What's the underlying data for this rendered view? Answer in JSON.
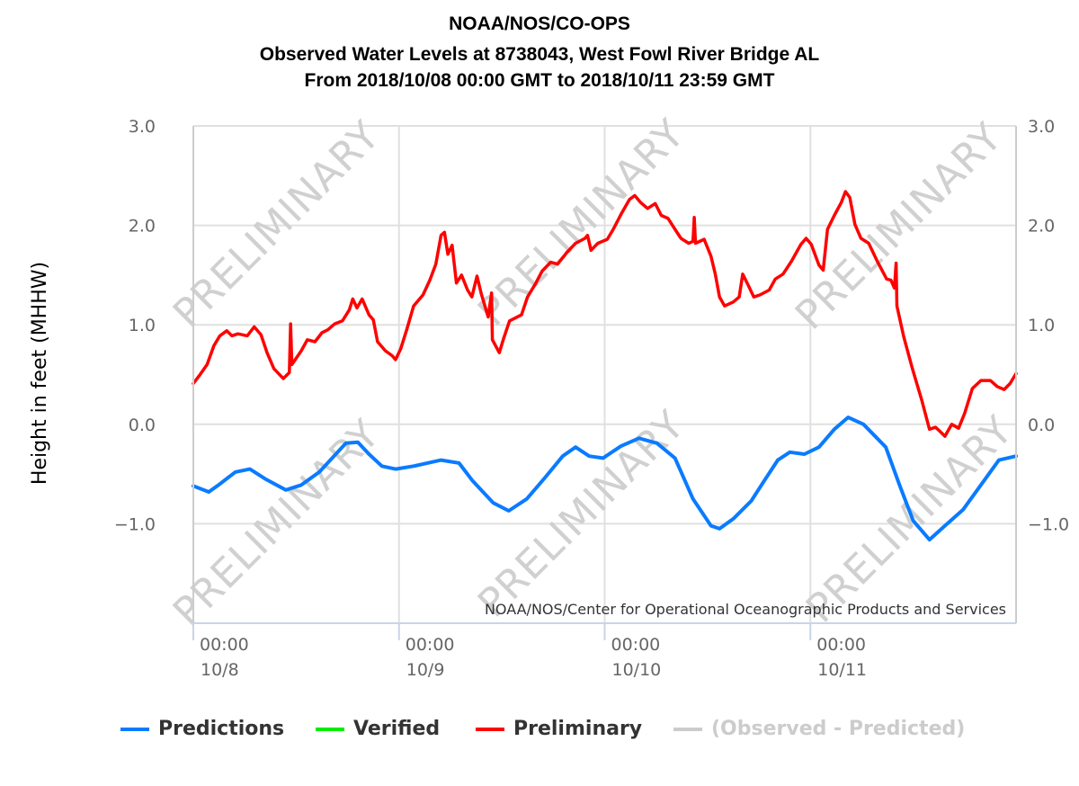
{
  "chart_data": {
    "type": "line",
    "title": [
      "NOAA/NOS/CO-OPS",
      "Observed Water Levels at 8738043, West Fowl River Bridge AL",
      "From 2018/10/08 00:00 GMT to 2018/10/11 23:59 GMT"
    ],
    "ylabel": "Height in feet (MHHW)",
    "xlabel": "",
    "x_units": "hours since 2018/10/08 00:00 GMT",
    "xlim": [
      0,
      96
    ],
    "ylim": [
      -2,
      3
    ],
    "y_ticks": [
      {
        "v": 3,
        "label": "3.0"
      },
      {
        "v": 2,
        "label": "2.0"
      },
      {
        "v": 1,
        "label": "1.0"
      },
      {
        "v": 0,
        "label": "0.0"
      },
      {
        "v": -1,
        "label": "−1.0"
      }
    ],
    "x_ticks": [
      {
        "v": 0,
        "time": "00:00",
        "date": "10/8"
      },
      {
        "v": 24,
        "time": "00:00",
        "date": "10/9"
      },
      {
        "v": 48,
        "time": "00:00",
        "date": "10/10"
      },
      {
        "v": 72,
        "time": "00:00",
        "date": "10/11"
      }
    ],
    "grid": true,
    "watermark": "PRELIMINARY",
    "credit": "NOAA/NOS/Center for Operational Oceanographic Products and Services",
    "legend_position": "bottom",
    "legend": [
      {
        "name": "Predictions",
        "color": "#0a7bff",
        "active": true
      },
      {
        "name": "Verified",
        "color": "#00ee00",
        "active": true
      },
      {
        "name": "Preliminary",
        "color": "#ff0000",
        "active": true
      },
      {
        "name": "(Observed - Predicted)",
        "color": "#cccccc",
        "active": false
      }
    ],
    "series": [
      {
        "name": "Preliminary",
        "color": "#ff0000",
        "points": [
          [
            0,
            0.41
          ],
          [
            0.7,
            0.49
          ],
          [
            1.6,
            0.6
          ],
          [
            2.4,
            0.79
          ],
          [
            3.1,
            0.89
          ],
          [
            3.9,
            0.94
          ],
          [
            4.5,
            0.89
          ],
          [
            5.2,
            0.91
          ],
          [
            6.3,
            0.89
          ],
          [
            7.1,
            0.98
          ],
          [
            7.9,
            0.9
          ],
          [
            8.6,
            0.72
          ],
          [
            9.4,
            0.56
          ],
          [
            10.5,
            0.46
          ],
          [
            11.2,
            0.52
          ],
          [
            11.35,
            1.01
          ],
          [
            11.5,
            0.6
          ],
          [
            12.6,
            0.74
          ],
          [
            13.3,
            0.85
          ],
          [
            14.2,
            0.83
          ],
          [
            15.0,
            0.92
          ],
          [
            15.7,
            0.95
          ],
          [
            16.5,
            1.01
          ],
          [
            17.4,
            1.04
          ],
          [
            18.2,
            1.15
          ],
          [
            18.6,
            1.26
          ],
          [
            19.1,
            1.17
          ],
          [
            19.7,
            1.26
          ],
          [
            20.5,
            1.1
          ],
          [
            21.0,
            1.05
          ],
          [
            21.5,
            0.83
          ],
          [
            22.4,
            0.74
          ],
          [
            23.2,
            0.69
          ],
          [
            23.6,
            0.65
          ],
          [
            24.2,
            0.76
          ],
          [
            24.9,
            0.95
          ],
          [
            25.7,
            1.19
          ],
          [
            26.8,
            1.3
          ],
          [
            27.6,
            1.45
          ],
          [
            28.3,
            1.61
          ],
          [
            28.9,
            1.9
          ],
          [
            29.3,
            1.93
          ],
          [
            29.7,
            1.71
          ],
          [
            30.2,
            1.8
          ],
          [
            30.7,
            1.42
          ],
          [
            31.3,
            1.5
          ],
          [
            32.0,
            1.35
          ],
          [
            32.5,
            1.28
          ],
          [
            33.1,
            1.49
          ],
          [
            33.6,
            1.31
          ],
          [
            34.4,
            1.08
          ],
          [
            34.8,
            1.32
          ],
          [
            34.9,
            0.85
          ],
          [
            35.7,
            0.72
          ],
          [
            36.2,
            0.86
          ],
          [
            36.9,
            1.04
          ],
          [
            37.8,
            1.08
          ],
          [
            38.3,
            1.1
          ],
          [
            39.0,
            1.28
          ],
          [
            39.9,
            1.41
          ],
          [
            40.7,
            1.54
          ],
          [
            41.7,
            1.63
          ],
          [
            42.5,
            1.61
          ],
          [
            43.6,
            1.73
          ],
          [
            44.6,
            1.82
          ],
          [
            45.7,
            1.87
          ],
          [
            46.0,
            1.9
          ],
          [
            46.4,
            1.75
          ],
          [
            47.2,
            1.82
          ],
          [
            48.3,
            1.86
          ],
          [
            49.0,
            1.96
          ],
          [
            49.9,
            2.11
          ],
          [
            50.9,
            2.26
          ],
          [
            51.5,
            2.3
          ],
          [
            52.2,
            2.23
          ],
          [
            53.0,
            2.17
          ],
          [
            53.9,
            2.22
          ],
          [
            54.6,
            2.1
          ],
          [
            55.4,
            2.07
          ],
          [
            56.2,
            1.96
          ],
          [
            56.9,
            1.87
          ],
          [
            57.8,
            1.82
          ],
          [
            58.3,
            1.84
          ],
          [
            58.45,
            2.08
          ],
          [
            58.6,
            1.82
          ],
          [
            59.6,
            1.86
          ],
          [
            60.4,
            1.69
          ],
          [
            60.9,
            1.51
          ],
          [
            61.4,
            1.28
          ],
          [
            62.0,
            1.19
          ],
          [
            63.0,
            1.23
          ],
          [
            63.7,
            1.28
          ],
          [
            64.1,
            1.51
          ],
          [
            64.8,
            1.39
          ],
          [
            65.4,
            1.28
          ],
          [
            66.1,
            1.3
          ],
          [
            67.2,
            1.35
          ],
          [
            67.9,
            1.46
          ],
          [
            68.8,
            1.51
          ],
          [
            69.8,
            1.64
          ],
          [
            70.9,
            1.81
          ],
          [
            71.5,
            1.87
          ],
          [
            72.1,
            1.81
          ],
          [
            73.0,
            1.6
          ],
          [
            73.5,
            1.55
          ],
          [
            74.0,
            1.96
          ],
          [
            74.8,
            2.1
          ],
          [
            75.6,
            2.23
          ],
          [
            76.1,
            2.34
          ],
          [
            76.6,
            2.28
          ],
          [
            77.2,
            2.01
          ],
          [
            77.9,
            1.87
          ],
          [
            78.8,
            1.82
          ],
          [
            79.8,
            1.64
          ],
          [
            80.9,
            1.46
          ],
          [
            81.4,
            1.45
          ],
          [
            81.8,
            1.37
          ],
          [
            82.0,
            1.62
          ],
          [
            82.1,
            1.19
          ],
          [
            82.9,
            0.88
          ],
          [
            83.9,
            0.56
          ],
          [
            85.0,
            0.24
          ],
          [
            85.9,
            -0.05
          ],
          [
            86.6,
            -0.03
          ],
          [
            87.1,
            -0.07
          ],
          [
            87.7,
            -0.12
          ],
          [
            88.5,
            0.0
          ],
          [
            89.3,
            -0.04
          ],
          [
            90.0,
            0.11
          ],
          [
            90.9,
            0.36
          ],
          [
            91.9,
            0.44
          ],
          [
            93.0,
            0.44
          ],
          [
            93.8,
            0.38
          ],
          [
            94.6,
            0.35
          ],
          [
            95.3,
            0.41
          ],
          [
            96.0,
            0.51
          ]
        ]
      },
      {
        "name": "Predictions",
        "color": "#0a7bff",
        "points": [
          [
            0,
            -0.62
          ],
          [
            1.8,
            -0.68
          ],
          [
            3.1,
            -0.6
          ],
          [
            4.9,
            -0.48
          ],
          [
            6.6,
            -0.45
          ],
          [
            8.4,
            -0.55
          ],
          [
            10.8,
            -0.66
          ],
          [
            12.6,
            -0.61
          ],
          [
            14.7,
            -0.48
          ],
          [
            16.3,
            -0.33
          ],
          [
            17.8,
            -0.19
          ],
          [
            19.2,
            -0.18
          ],
          [
            20.5,
            -0.3
          ],
          [
            22.0,
            -0.42
          ],
          [
            23.6,
            -0.45
          ],
          [
            25.7,
            -0.42
          ],
          [
            28.9,
            -0.36
          ],
          [
            31.0,
            -0.39
          ],
          [
            32.6,
            -0.57
          ],
          [
            35.0,
            -0.79
          ],
          [
            36.8,
            -0.87
          ],
          [
            38.9,
            -0.75
          ],
          [
            41.0,
            -0.54
          ],
          [
            43.1,
            -0.32
          ],
          [
            44.6,
            -0.23
          ],
          [
            46.2,
            -0.32
          ],
          [
            47.8,
            -0.34
          ],
          [
            49.9,
            -0.22
          ],
          [
            52.0,
            -0.14
          ],
          [
            54.1,
            -0.19
          ],
          [
            56.2,
            -0.34
          ],
          [
            58.3,
            -0.75
          ],
          [
            60.4,
            -1.02
          ],
          [
            61.4,
            -1.05
          ],
          [
            63.0,
            -0.95
          ],
          [
            65.1,
            -0.77
          ],
          [
            66.6,
            -0.57
          ],
          [
            68.2,
            -0.36
          ],
          [
            69.6,
            -0.28
          ],
          [
            71.3,
            -0.3
          ],
          [
            73.0,
            -0.23
          ],
          [
            74.8,
            -0.05
          ],
          [
            76.4,
            0.07
          ],
          [
            78.2,
            0.0
          ],
          [
            80.8,
            -0.23
          ],
          [
            82.4,
            -0.61
          ],
          [
            84.0,
            -0.97
          ],
          [
            85.9,
            -1.16
          ],
          [
            87.7,
            -1.02
          ],
          [
            89.8,
            -0.86
          ],
          [
            91.9,
            -0.61
          ],
          [
            94.0,
            -0.36
          ],
          [
            96.0,
            -0.32
          ]
        ]
      }
    ]
  }
}
